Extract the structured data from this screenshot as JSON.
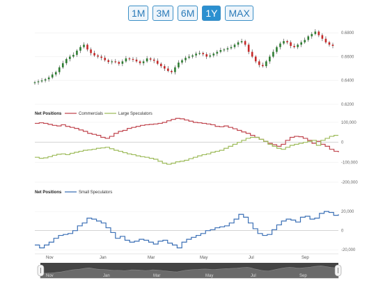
{
  "range_buttons": [
    {
      "label": "1M",
      "active": false
    },
    {
      "label": "3M",
      "active": false
    },
    {
      "label": "6M",
      "active": false
    },
    {
      "label": "1Y",
      "active": true
    },
    {
      "label": "MAX",
      "active": false
    }
  ],
  "colors": {
    "accent": "#2b90d0",
    "candle_up": "#2e7d32",
    "candle_down": "#c62828",
    "commercials": "#c0454e",
    "large_speculators": "#9dbb5a",
    "small_speculators": "#3a6fb5",
    "navigator_bg": "#444444"
  },
  "months": [
    "Nov",
    "Jan",
    "Mar",
    "May",
    "Jul",
    "Sep"
  ],
  "chart_data": [
    {
      "type": "candlestick",
      "title": "",
      "ylim": [
        0.62,
        0.69
      ],
      "y_ticks": [
        "0.6800",
        "0.6600",
        "0.6400",
        "0.6200"
      ],
      "y_tick_values": [
        0.68,
        0.66,
        0.64,
        0.62
      ],
      "close_series": [
        0.6385,
        0.6392,
        0.64,
        0.641,
        0.6425,
        0.645,
        0.647,
        0.651,
        0.6545,
        0.658,
        0.66,
        0.6615,
        0.665,
        0.668,
        0.67,
        0.666,
        0.663,
        0.661,
        0.66,
        0.659,
        0.657,
        0.6555,
        0.656,
        0.6555,
        0.654,
        0.656,
        0.6585,
        0.658,
        0.6575,
        0.656,
        0.6545,
        0.656,
        0.6585,
        0.6575,
        0.6565,
        0.654,
        0.652,
        0.65,
        0.648,
        0.647,
        0.651,
        0.655,
        0.657,
        0.659,
        0.66,
        0.661,
        0.6625,
        0.663,
        0.662,
        0.66,
        0.661,
        0.6625,
        0.664,
        0.6655,
        0.666,
        0.667,
        0.668,
        0.67,
        0.672,
        0.673,
        0.67,
        0.664,
        0.66,
        0.656,
        0.653,
        0.652,
        0.656,
        0.66,
        0.664,
        0.668,
        0.671,
        0.673,
        0.672,
        0.669,
        0.668,
        0.67,
        0.672,
        0.674,
        0.677,
        0.679,
        0.681,
        0.678,
        0.675,
        0.672,
        0.67,
        0.669
      ]
    },
    {
      "type": "line",
      "panel_label": "Net Positions",
      "ylim": [
        -200000,
        100000
      ],
      "y_ticks": [
        "100,000",
        "0",
        "-100,000",
        "-200,000"
      ],
      "y_tick_values": [
        100000,
        0,
        -100000,
        -200000
      ],
      "series": [
        {
          "name": "Commercials",
          "values": [
            95000,
            98000,
            95000,
            90000,
            85000,
            82000,
            88000,
            80000,
            75000,
            70000,
            62000,
            55000,
            45000,
            40000,
            35000,
            25000,
            20000,
            30000,
            45000,
            55000,
            60000,
            70000,
            75000,
            80000,
            85000,
            88000,
            90000,
            92000,
            95000,
            100000,
            108000,
            115000,
            120000,
            118000,
            112000,
            106000,
            100000,
            98000,
            95000,
            92000,
            88000,
            80000,
            78000,
            82000,
            75000,
            68000,
            60000,
            52000,
            45000,
            35000,
            25000,
            15000,
            5000,
            -5000,
            -12000,
            -20000,
            -10000,
            10000,
            25000,
            30000,
            28000,
            20000,
            10000,
            -5000,
            5000,
            -10000,
            -20000,
            -35000,
            -45000,
            -50000
          ]
        },
        {
          "name": "Large Speculators",
          "values": [
            -75000,
            -80000,
            -78000,
            -72000,
            -65000,
            -60000,
            -58000,
            -62000,
            -55000,
            -50000,
            -45000,
            -40000,
            -38000,
            -35000,
            -30000,
            -28000,
            -25000,
            -32000,
            -40000,
            -45000,
            -52000,
            -58000,
            -62000,
            -68000,
            -72000,
            -75000,
            -80000,
            -85000,
            -95000,
            -105000,
            -110000,
            -105000,
            -98000,
            -95000,
            -90000,
            -82000,
            -75000,
            -68000,
            -62000,
            -58000,
            -50000,
            -45000,
            -40000,
            -30000,
            -20000,
            -10000,
            0,
            10000,
            20000,
            25000,
            25000,
            15000,
            5000,
            -10000,
            -20000,
            -30000,
            -35000,
            -25000,
            -15000,
            -10000,
            -5000,
            0,
            5000,
            10000,
            -15000,
            10000,
            20000,
            30000,
            35000,
            35000
          ]
        }
      ]
    },
    {
      "type": "line",
      "panel_label": "Net Positions",
      "ylim": [
        -22000,
        23000
      ],
      "y_ticks": [
        "20,000",
        "0",
        "-20,000"
      ],
      "y_tick_values": [
        20000,
        0,
        -20000
      ],
      "series": [
        {
          "name": "Small Speculators",
          "values": [
            -15000,
            -18000,
            -15000,
            -12000,
            -8000,
            -5000,
            -4000,
            -3000,
            0,
            5000,
            8000,
            13000,
            12000,
            10000,
            8000,
            3000,
            -2000,
            -8000,
            -6000,
            -10000,
            -12000,
            -11000,
            -9000,
            -10000,
            -12000,
            -14000,
            -11000,
            -10000,
            -13000,
            -15000,
            -18000,
            -12000,
            -9000,
            -7000,
            -5000,
            -3000,
            0,
            1000,
            3000,
            4000,
            5000,
            8000,
            12000,
            17000,
            14000,
            8000,
            2000,
            -3000,
            -5000,
            -4000,
            1000,
            6000,
            10000,
            12000,
            11000,
            9000,
            14000,
            15000,
            12000,
            13000,
            18000,
            20000,
            19000,
            16000,
            17000
          ]
        }
      ]
    }
  ],
  "navigator": {
    "months": [
      "Nov",
      "Jan",
      "Mar",
      "May",
      "Jul",
      "Sep"
    ]
  }
}
